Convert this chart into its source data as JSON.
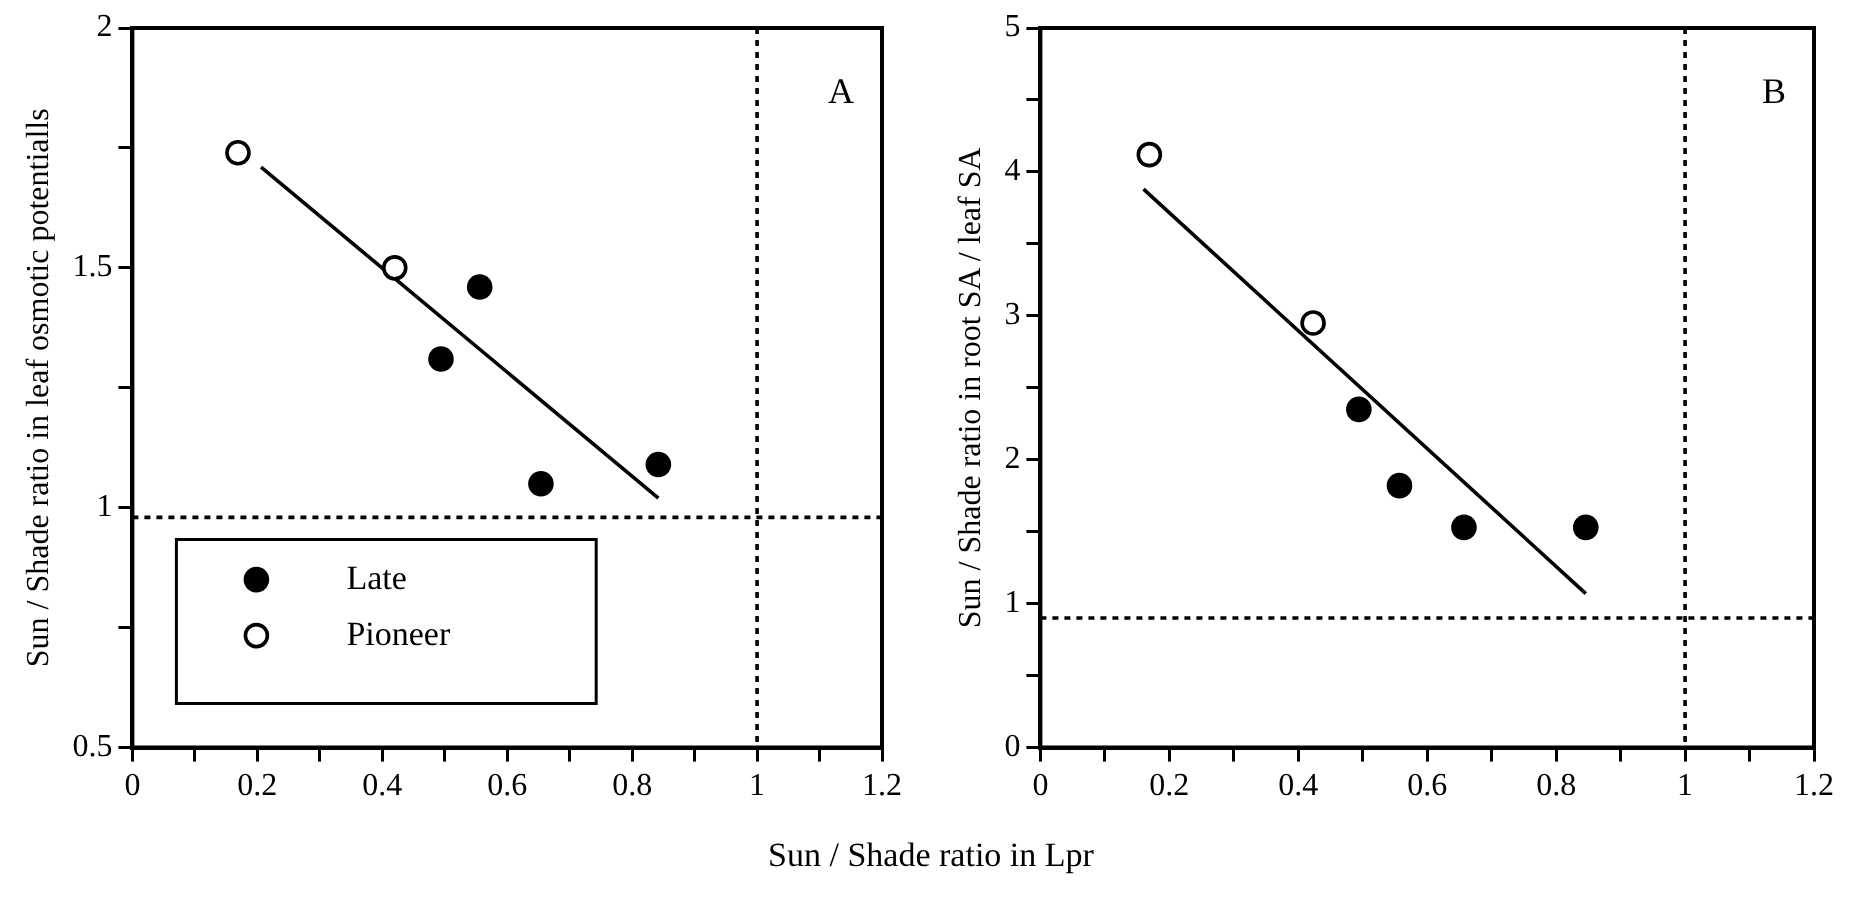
{
  "chart_data": [
    {
      "type": "scatter",
      "xlabel": "Sun / Shade ratio in Lpr",
      "ylabel": "Sun / Shade ratio in leaf osmotic potentialls",
      "annotations": [
        "A"
      ],
      "legend": "bottom left",
      "marker": "circle",
      "grid": false,
      "xlim": [
        0,
        1.2
      ],
      "xticks": [
        0,
        {
          "value": 0.1,
          "label": null
        },
        0.2,
        {
          "value": 0.3,
          "label": null
        },
        0.4,
        {
          "value": 0.5,
          "label": null
        },
        0.6,
        {
          "value": 0.7,
          "label": null
        },
        0.8,
        {
          "value": 0.9,
          "label": null
        },
        1,
        {
          "value": 1.1,
          "label": null
        },
        1.2
      ],
      "ylim": [
        0.5,
        2
      ],
      "yticks": [
        0.5,
        {
          "value": 0.75,
          "label": null
        },
        1,
        {
          "value": 1.25,
          "label": null
        },
        1.5,
        {
          "value": 1.75,
          "label": null
        },
        2
      ],
      "ref_lines": [
        {
          "axis": "y",
          "value": 0.98,
          "line_style": "dotted"
        },
        {
          "axis": "x",
          "value": 1.0,
          "line_style": "dotted"
        }
      ],
      "series": [
        {
          "name": "Late",
          "color": "#000000",
          "x": [
            0.494,
            0.556,
            0.654,
            0.842
          ],
          "values": [
            1.31,
            1.46,
            1.05,
            1.09
          ]
        },
        {
          "name": "Pioneer",
          "color": "#ffffff",
          "x": [
            0.169,
            0.42
          ],
          "values": [
            1.74,
            1.5
          ]
        },
        {
          "type": "line",
          "marker": "none",
          "color": "#000000",
          "x": [
            0.206,
            0.842
          ],
          "values": [
            1.71,
            1.02
          ]
        }
      ]
    },
    {
      "type": "scatter",
      "ylabel": "Sun / Shade ratio in root SA / leaf SA",
      "annotations": [
        "B"
      ],
      "marker": "circle",
      "grid": false,
      "xlim": [
        0,
        1.2
      ],
      "xticks": [
        0,
        {
          "value": 0.1,
          "label": null
        },
        0.2,
        {
          "value": 0.3,
          "label": null
        },
        0.4,
        {
          "value": 0.5,
          "label": null
        },
        0.6,
        {
          "value": 0.7,
          "label": null
        },
        0.8,
        {
          "value": 0.9,
          "label": null
        },
        1,
        {
          "value": 1.1,
          "label": null
        },
        1.2
      ],
      "ylim": [
        0,
        5
      ],
      "yticks": [
        0,
        {
          "value": 0.5,
          "label": null
        },
        1,
        {
          "value": 1.5,
          "label": null
        },
        2,
        {
          "value": 2.5,
          "label": null
        },
        3,
        {
          "value": 3.5,
          "label": null
        },
        4,
        {
          "value": 4.5,
          "label": null
        },
        5
      ],
      "ref_lines": [
        {
          "axis": "y",
          "value": 0.9,
          "line_style": "dotted"
        },
        {
          "axis": "x",
          "value": 1.0,
          "line_style": "dotted"
        }
      ],
      "series": [
        {
          "color": "#000000",
          "x": [
            0.494,
            0.557,
            0.657,
            0.846
          ],
          "values": [
            2.35,
            1.82,
            1.53,
            1.53
          ]
        },
        {
          "color": "#ffffff",
          "x": [
            0.169,
            0.423
          ],
          "values": [
            4.12,
            2.95
          ]
        },
        {
          "type": "line",
          "marker": "none",
          "color": "#000000",
          "x": [
            0.16,
            0.846
          ],
          "values": [
            3.88,
            1.07
          ]
        }
      ]
    }
  ]
}
